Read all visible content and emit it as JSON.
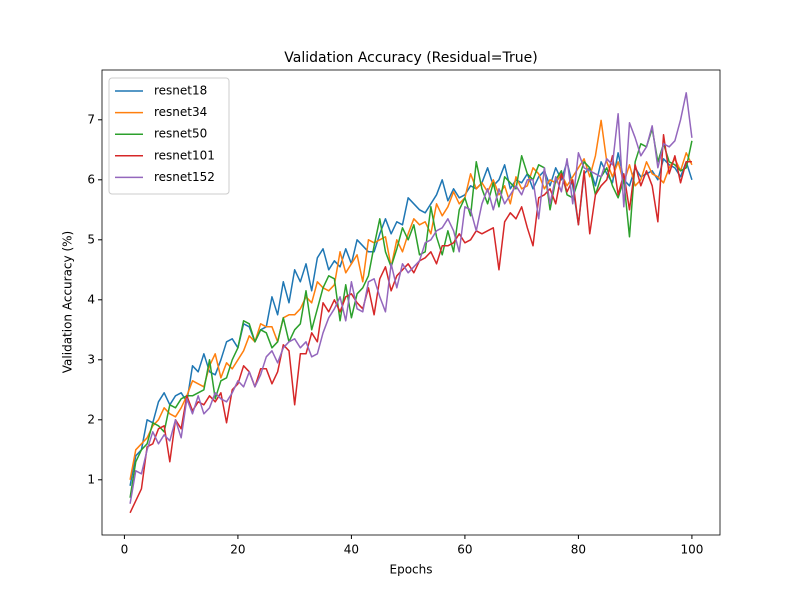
{
  "chart_data": {
    "type": "line",
    "title": "Validation Accuracy (Residual=True)",
    "xlabel": "Epochs",
    "ylabel": "Validation Accuracy (%)",
    "x": [
      1,
      2,
      3,
      4,
      5,
      6,
      7,
      8,
      9,
      10,
      11,
      12,
      13,
      14,
      15,
      16,
      17,
      18,
      19,
      20,
      21,
      22,
      23,
      24,
      25,
      26,
      27,
      28,
      29,
      30,
      31,
      32,
      33,
      34,
      35,
      36,
      37,
      38,
      39,
      40,
      41,
      42,
      43,
      44,
      45,
      46,
      47,
      48,
      49,
      50,
      51,
      52,
      53,
      54,
      55,
      56,
      57,
      58,
      59,
      60,
      61,
      62,
      63,
      64,
      65,
      66,
      67,
      68,
      69,
      70,
      71,
      72,
      73,
      74,
      75,
      76,
      77,
      78,
      79,
      80,
      81,
      82,
      83,
      84,
      85,
      86,
      87,
      88,
      89,
      90,
      91,
      92,
      93,
      94,
      95,
      96,
      97,
      98,
      99,
      100
    ],
    "series": [
      {
        "name": "resnet18",
        "color": "#1f77b4",
        "values": [
          0.9,
          1.4,
          1.5,
          2.0,
          1.95,
          2.3,
          2.45,
          2.25,
          2.4,
          2.45,
          2.3,
          2.9,
          2.8,
          3.1,
          2.8,
          2.75,
          3.0,
          3.3,
          3.35,
          3.2,
          3.6,
          3.55,
          3.3,
          3.5,
          3.55,
          4.05,
          3.75,
          4.3,
          3.95,
          4.5,
          4.3,
          4.6,
          4.15,
          4.7,
          4.85,
          4.5,
          4.65,
          4.55,
          4.85,
          4.6,
          5.0,
          4.9,
          4.8,
          4.8,
          5.1,
          5.35,
          5.1,
          5.3,
          5.25,
          5.7,
          5.6,
          5.5,
          5.45,
          5.6,
          5.75,
          6.0,
          5.65,
          5.85,
          5.7,
          5.75,
          5.9,
          5.85,
          5.95,
          6.2,
          5.9,
          6.0,
          6.25,
          5.85,
          6.0,
          5.95,
          6.1,
          5.85,
          6.05,
          6.15,
          5.9,
          6.2,
          6.0,
          6.3,
          5.9,
          5.25,
          6.1,
          6.2,
          5.9,
          6.3,
          6.1,
          5.95,
          6.45,
          6.0,
          5.9,
          6.2,
          6.05,
          6.1,
          6.15,
          6.0,
          6.35,
          6.25,
          6.2,
          6.05,
          6.3,
          6.0
        ]
      },
      {
        "name": "resnet34",
        "color": "#ff7f0e",
        "values": [
          1.0,
          1.5,
          1.6,
          1.7,
          1.9,
          2.0,
          2.2,
          2.1,
          2.05,
          2.2,
          2.4,
          2.65,
          2.6,
          2.55,
          2.9,
          3.1,
          2.7,
          2.95,
          2.85,
          3.0,
          3.15,
          3.4,
          3.3,
          3.6,
          3.55,
          3.55,
          3.3,
          3.7,
          3.75,
          3.75,
          3.85,
          4.05,
          3.95,
          4.3,
          4.2,
          4.15,
          4.25,
          4.8,
          4.45,
          4.6,
          4.75,
          4.3,
          5.0,
          4.95,
          5.0,
          5.05,
          4.55,
          5.0,
          4.8,
          5.1,
          5.35,
          5.25,
          5.3,
          5.1,
          5.6,
          5.4,
          5.55,
          5.8,
          5.6,
          5.7,
          6.1,
          5.85,
          5.95,
          5.8,
          6.0,
          5.75,
          5.9,
          5.6,
          6.05,
          5.85,
          5.9,
          6.2,
          6.1,
          5.85,
          6.0,
          5.95,
          6.1,
          5.9,
          6.05,
          6.2,
          6.35,
          6.05,
          6.4,
          6.99,
          6.3,
          6.05,
          6.3,
          5.95,
          6.25,
          5.9,
          6.0,
          6.3,
          6.1,
          6.05,
          5.95,
          6.2,
          6.35,
          6.15,
          6.45,
          6.25
        ]
      },
      {
        "name": "resnet50",
        "color": "#2ca02c",
        "values": [
          0.7,
          1.3,
          1.5,
          1.6,
          1.95,
          1.9,
          1.8,
          2.25,
          2.2,
          2.35,
          2.4,
          2.4,
          2.45,
          2.5,
          3.0,
          2.35,
          2.65,
          2.7,
          3.0,
          3.2,
          3.65,
          3.6,
          3.3,
          3.5,
          3.45,
          3.2,
          3.3,
          3.7,
          3.3,
          3.5,
          3.6,
          4.15,
          3.5,
          3.85,
          4.2,
          4.4,
          4.35,
          3.65,
          4.25,
          3.7,
          4.1,
          4.2,
          4.4,
          4.9,
          5.35,
          4.8,
          4.55,
          4.85,
          5.2,
          5.0,
          5.25,
          4.75,
          4.8,
          5.55,
          5.05,
          4.75,
          5.15,
          4.8,
          5.5,
          5.7,
          5.4,
          6.3,
          5.85,
          5.6,
          5.95,
          5.55,
          6.05,
          5.95,
          5.85,
          6.4,
          6.1,
          6.0,
          6.25,
          6.2,
          5.5,
          6.0,
          6.15,
          5.75,
          5.7,
          6.0,
          6.3,
          6.2,
          5.75,
          6.05,
          6.2,
          5.9,
          5.7,
          6.0,
          5.05,
          6.3,
          6.6,
          6.55,
          6.85,
          6.3,
          6.6,
          6.3,
          6.25,
          6.15,
          6.2,
          6.65
        ]
      },
      {
        "name": "resnet101",
        "color": "#d62728",
        "values": [
          0.45,
          0.65,
          0.85,
          1.55,
          1.6,
          1.85,
          1.9,
          1.3,
          2.0,
          1.85,
          2.4,
          2.15,
          2.3,
          2.25,
          2.4,
          2.3,
          2.45,
          1.95,
          2.5,
          2.6,
          2.9,
          2.8,
          2.55,
          2.85,
          2.85,
          2.6,
          2.8,
          3.25,
          3.15,
          2.25,
          3.1,
          3.1,
          3.45,
          3.3,
          3.95,
          3.8,
          4.0,
          3.8,
          4.05,
          4.1,
          3.95,
          3.85,
          4.2,
          3.75,
          4.35,
          4.55,
          4.15,
          4.4,
          4.5,
          4.6,
          4.45,
          4.65,
          4.7,
          4.8,
          4.6,
          4.9,
          4.9,
          4.95,
          5.1,
          4.95,
          5.0,
          5.15,
          5.1,
          5.15,
          5.2,
          4.5,
          5.3,
          5.45,
          5.35,
          5.55,
          5.2,
          4.9,
          5.7,
          5.75,
          5.85,
          5.6,
          6.1,
          5.8,
          6.0,
          5.25,
          6.15,
          5.1,
          5.75,
          5.9,
          6.0,
          6.4,
          5.75,
          6.1,
          5.5,
          6.25,
          5.9,
          6.15,
          5.9,
          5.3,
          6.75,
          6.1,
          6.4,
          5.95,
          6.3,
          6.3
        ]
      },
      {
        "name": "resnet152",
        "color": "#9467bd",
        "values": [
          0.6,
          1.15,
          1.1,
          1.5,
          1.8,
          1.6,
          1.75,
          1.65,
          2.0,
          1.7,
          2.35,
          2.1,
          2.4,
          2.1,
          2.2,
          2.45,
          2.35,
          2.3,
          2.45,
          2.65,
          2.55,
          2.8,
          2.55,
          2.75,
          3.05,
          3.15,
          2.95,
          3.2,
          3.3,
          3.35,
          3.2,
          3.3,
          3.05,
          3.1,
          3.45,
          3.7,
          3.85,
          4.05,
          3.65,
          4.3,
          3.85,
          3.8,
          4.3,
          4.35,
          4.05,
          3.8,
          4.6,
          4.2,
          4.6,
          4.45,
          4.55,
          4.65,
          4.95,
          5.0,
          5.15,
          5.2,
          5.35,
          5.15,
          4.8,
          5.55,
          5.5,
          5.15,
          5.6,
          5.85,
          5.5,
          5.85,
          5.6,
          5.75,
          5.9,
          5.75,
          6.0,
          6.0,
          5.35,
          6.2,
          5.6,
          6.05,
          5.8,
          6.35,
          5.6,
          6.45,
          6.2,
          6.15,
          6.1,
          6.05,
          6.35,
          6.25,
          7.1,
          5.55,
          6.95,
          6.7,
          6.4,
          6.55,
          6.9,
          6.2,
          6.6,
          6.55,
          6.65,
          7.0,
          7.45,
          6.7
        ]
      }
    ],
    "xlim": [
      -3.95,
      104.95
    ],
    "xticks": [
      0,
      20,
      40,
      60,
      80,
      100
    ],
    "ylim": [
      0.08,
      7.83
    ],
    "yticks": [
      1,
      2,
      3,
      4,
      5,
      6,
      7
    ],
    "legend": "upper left",
    "grid": false
  }
}
